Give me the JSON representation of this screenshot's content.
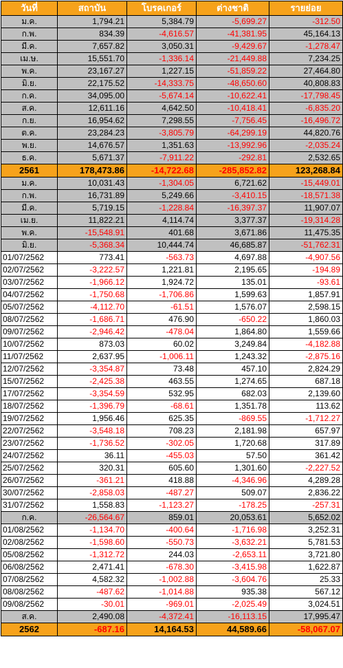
{
  "headers": [
    "วันที่",
    "สถาบัน",
    "โบรคเกอร์",
    "ต่างชาติ",
    "รายย่อย"
  ],
  "rows": [
    {
      "type": "month",
      "label": "ม.ค.",
      "values": [
        "1,794.21",
        "5,384.79",
        "-5,699.27",
        "-312.50"
      ]
    },
    {
      "type": "month",
      "label": "ก.พ.",
      "values": [
        "834.39",
        "-4,616.57",
        "-41,381.95",
        "45,164.13"
      ]
    },
    {
      "type": "month",
      "label": "มี.ค.",
      "values": [
        "7,657.82",
        "3,050.31",
        "-9,429.67",
        "-1,278.47"
      ]
    },
    {
      "type": "month",
      "label": "เม.ษ.",
      "values": [
        "15,551.70",
        "-1,336.14",
        "-21,449.88",
        "7,234.25"
      ]
    },
    {
      "type": "month",
      "label": "พ.ค.",
      "values": [
        "23,167.27",
        "1,227.15",
        "-51,859.22",
        "27,464.80"
      ]
    },
    {
      "type": "month",
      "label": "มิ.ย.",
      "values": [
        "22,175.52",
        "-14,333.75",
        "-48,650.60",
        "40,808.83"
      ]
    },
    {
      "type": "month",
      "label": "ก.ค.",
      "values": [
        "34,095.00",
        "-5,674.14",
        "-10,622.41",
        "-17,798.45"
      ]
    },
    {
      "type": "month",
      "label": "ส.ค.",
      "values": [
        "12,611.16",
        "4,642.50",
        "-10,418.41",
        "-6,835.20"
      ]
    },
    {
      "type": "month",
      "label": "ก.ย.",
      "values": [
        "16,954.62",
        "7,298.55",
        "-7,756.45",
        "-16,496.72"
      ]
    },
    {
      "type": "month",
      "label": "ต.ค.",
      "values": [
        "23,284.23",
        "-3,805.79",
        "-64,299.19",
        "44,820.76"
      ]
    },
    {
      "type": "month",
      "label": "พ.ย.",
      "values": [
        "14,676.57",
        "1,351.63",
        "-13,992.96",
        "-2,035.24"
      ]
    },
    {
      "type": "month",
      "label": "ธ.ค.",
      "values": [
        "5,671.37",
        "-7,911.22",
        "-292.81",
        "2,532.65"
      ]
    },
    {
      "type": "year",
      "label": "2561",
      "values": [
        "178,473.86",
        "-14,722.68",
        "-285,852.82",
        "123,268.84"
      ]
    },
    {
      "type": "month",
      "label": "ม.ค.",
      "values": [
        "10,031.43",
        "-1,304.05",
        "6,721.62",
        "-15,449.01"
      ]
    },
    {
      "type": "month",
      "label": "ก.พ.",
      "values": [
        "16,731.89",
        "5,249.66",
        "-3,410.15",
        "-18,571.38"
      ]
    },
    {
      "type": "month",
      "label": "มี.ค.",
      "values": [
        "5,719.15",
        "-1,228.84",
        "-16,397.37",
        "11,907.07"
      ]
    },
    {
      "type": "month",
      "label": "เม.ย.",
      "values": [
        "11,822.21",
        "4,114.74",
        "3,377.37",
        "-19,314.28"
      ]
    },
    {
      "type": "month",
      "label": "พ.ค.",
      "values": [
        "-15,548.91",
        "401.68",
        "3,671.86",
        "11,475.35"
      ]
    },
    {
      "type": "month",
      "label": "มิ.ย.",
      "values": [
        "-5,368.34",
        "10,444.74",
        "46,685.87",
        "-51,762.31"
      ]
    },
    {
      "type": "day",
      "label": "01/07/2562",
      "values": [
        "773.41",
        "-563.73",
        "4,697.88",
        "-4,907.56"
      ]
    },
    {
      "type": "day",
      "label": "02/07/2562",
      "values": [
        "-3,222.57",
        "1,221.81",
        "2,195.65",
        "-194.89"
      ]
    },
    {
      "type": "day",
      "label": "03/07/2562",
      "values": [
        "-1,966.12",
        "1,924.72",
        "135.01",
        "-93.61"
      ]
    },
    {
      "type": "day",
      "label": "04/07/2562",
      "values": [
        "-1,750.68",
        "-1,706.86",
        "1,599.63",
        "1,857.91"
      ]
    },
    {
      "type": "day",
      "label": "05/07/2562",
      "values": [
        "-4,112.70",
        "-61.51",
        "1,576.07",
        "2,598.15"
      ]
    },
    {
      "type": "day",
      "label": "08/07/2562",
      "values": [
        "-1,686.71",
        "476.90",
        "-650.22",
        "1,860.03"
      ]
    },
    {
      "type": "day",
      "label": "09/07/2562",
      "values": [
        "-2,946.42",
        "-478.04",
        "1,864.80",
        "1,559.66"
      ]
    },
    {
      "type": "day",
      "label": "10/07/2562",
      "values": [
        "873.03",
        "60.02",
        "3,249.84",
        "-4,182.88"
      ]
    },
    {
      "type": "day",
      "label": "11/07/2562",
      "values": [
        "2,637.95",
        "-1,006.11",
        "1,243.32",
        "-2,875.16"
      ]
    },
    {
      "type": "day",
      "label": "12/07/2562",
      "values": [
        "-3,354.87",
        "73.48",
        "457.10",
        "2,824.29"
      ]
    },
    {
      "type": "day",
      "label": "15/07/2562",
      "values": [
        "-2,425.38",
        "463.55",
        "1,274.65",
        "687.18"
      ]
    },
    {
      "type": "day",
      "label": "17/07/2562",
      "values": [
        "-3,354.59",
        "532.95",
        "682.03",
        "2,139.60"
      ]
    },
    {
      "type": "day",
      "label": "18/07/2562",
      "values": [
        "-1,396.79",
        "-68.61",
        "1,351.78",
        "113.62"
      ]
    },
    {
      "type": "day",
      "label": "19/07/2562",
      "values": [
        "1,956.46",
        "625.35",
        "-869.55",
        "-1,712.27"
      ]
    },
    {
      "type": "day",
      "label": "22/07/2562",
      "values": [
        "-3,548.18",
        "708.23",
        "2,181.98",
        "657.97"
      ]
    },
    {
      "type": "day",
      "label": "23/07/2562",
      "values": [
        "-1,736.52",
        "-302.05",
        "1,720.68",
        "317.89"
      ]
    },
    {
      "type": "day",
      "label": "24/07/2562",
      "values": [
        "36.11",
        "-455.03",
        "57.50",
        "361.42"
      ]
    },
    {
      "type": "day",
      "label": "25/07/2562",
      "values": [
        "320.31",
        "605.60",
        "1,301.60",
        "-2,227.52"
      ]
    },
    {
      "type": "day",
      "label": "26/07/2562",
      "values": [
        "-361.21",
        "418.88",
        "-4,346.96",
        "4,289.28"
      ]
    },
    {
      "type": "day",
      "label": "30/07/2562",
      "values": [
        "-2,858.03",
        "-487.27",
        "509.07",
        "2,836.22"
      ]
    },
    {
      "type": "day",
      "label": "31/07/2562",
      "values": [
        "1,558.83",
        "-1,123.27",
        "-178.25",
        "-257.31"
      ]
    },
    {
      "type": "month",
      "label": "ก.ค.",
      "values": [
        "-26,564.67",
        "859.01",
        "20,053.61",
        "5,652.02"
      ]
    },
    {
      "type": "day",
      "label": "01/08/2562",
      "values": [
        "-1,134.70",
        "-400.64",
        "-1,716.98",
        "3,252.31"
      ]
    },
    {
      "type": "day",
      "label": "02/08/2562",
      "values": [
        "-1,598.60",
        "-550.73",
        "-3,632.21",
        "5,781.53"
      ]
    },
    {
      "type": "day",
      "label": "05/08/2562",
      "values": [
        "-1,312.72",
        "244.03",
        "-2,653.11",
        "3,721.80"
      ]
    },
    {
      "type": "day",
      "label": "06/08/2562",
      "values": [
        "2,471.41",
        "-678.30",
        "-3,415.98",
        "1,622.87"
      ]
    },
    {
      "type": "day",
      "label": "07/08/2562",
      "values": [
        "4,582.32",
        "-1,002.88",
        "-3,604.76",
        "25.33"
      ]
    },
    {
      "type": "day",
      "label": "08/08/2562",
      "values": [
        "-487.62",
        "-1,014.88",
        "935.38",
        "567.12"
      ]
    },
    {
      "type": "day",
      "label": "09/08/2562",
      "values": [
        "-30.01",
        "-969.01",
        "-2,025.49",
        "3,024.51"
      ]
    },
    {
      "type": "month",
      "label": "ส.ค.",
      "values": [
        "2,490.08",
        "-4,372.41",
        "-16,113.15",
        "17,995.47"
      ]
    },
    {
      "type": "year",
      "label": "2562",
      "values": [
        "-687.16",
        "14,164.53",
        "44,589.66",
        "-58,067.07"
      ]
    }
  ],
  "colors": {
    "header_bg": "#f7a21b",
    "header_text": "#ffffff",
    "month_row_bg": "#c0c0c0",
    "year_row_bg": "#f7a21b",
    "negative_text": "#ff0000"
  }
}
